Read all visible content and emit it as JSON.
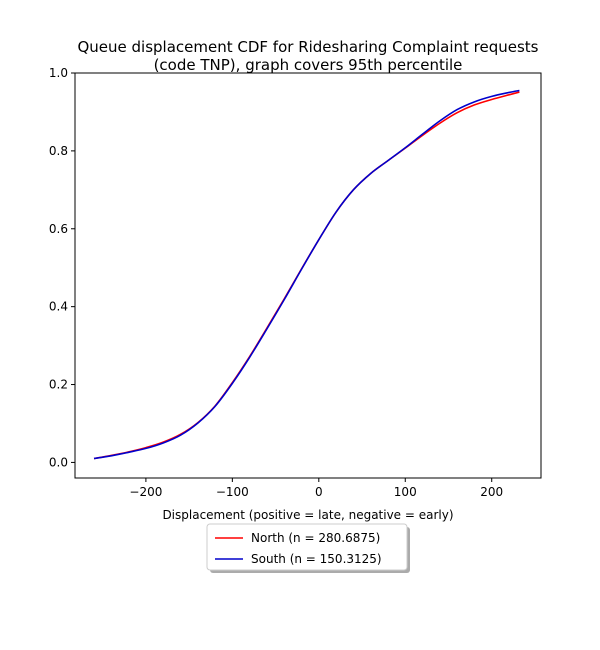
{
  "chart_data": {
    "type": "line",
    "title": [
      "Queue displacement CDF for Ridesharing Complaint  requests",
      "(code TNP), graph covers 95th percentile"
    ],
    "xlabel": "Displacement (positive = late, negative = early)",
    "ylabel": "",
    "xlim": [
      -282,
      257
    ],
    "ylim": [
      -0.04,
      1.0
    ],
    "x_ticks": [
      -200,
      -100,
      0,
      100,
      200
    ],
    "x_tick_labels": [
      "−200",
      "−100",
      "0",
      "100",
      "200"
    ],
    "y_ticks": [
      0.0,
      0.2,
      0.4,
      0.6,
      0.8,
      1.0
    ],
    "y_tick_labels": [
      "0.0",
      "0.2",
      "0.4",
      "0.6",
      "0.8",
      "1.0"
    ],
    "grid": false,
    "legend_position": "below-center",
    "series": [
      {
        "name": "North (n = 280.6875)",
        "color": "#ff0000",
        "x": [
          -260,
          -240,
          -220,
          -200,
          -180,
          -160,
          -140,
          -120,
          -100,
          -80,
          -60,
          -40,
          -20,
          0,
          20,
          40,
          60,
          80,
          100,
          120,
          140,
          160,
          180,
          200,
          220,
          232
        ],
        "y": [
          0.01,
          0.018,
          0.027,
          0.038,
          0.052,
          0.072,
          0.102,
          0.145,
          0.205,
          0.272,
          0.345,
          0.42,
          0.497,
          0.572,
          0.643,
          0.7,
          0.742,
          0.775,
          0.807,
          0.84,
          0.871,
          0.898,
          0.918,
          0.932,
          0.944,
          0.951
        ]
      },
      {
        "name": "South (n = 150.3125)",
        "color": "#0000cc",
        "x": [
          -260,
          -240,
          -220,
          -200,
          -180,
          -160,
          -140,
          -120,
          -100,
          -80,
          -60,
          -40,
          -20,
          0,
          20,
          40,
          60,
          80,
          100,
          120,
          140,
          160,
          180,
          200,
          220,
          232
        ],
        "y": [
          0.01,
          0.017,
          0.026,
          0.036,
          0.05,
          0.07,
          0.101,
          0.144,
          0.203,
          0.27,
          0.343,
          0.418,
          0.496,
          0.572,
          0.643,
          0.7,
          0.742,
          0.775,
          0.808,
          0.843,
          0.877,
          0.906,
          0.926,
          0.94,
          0.95,
          0.955
        ]
      }
    ]
  }
}
